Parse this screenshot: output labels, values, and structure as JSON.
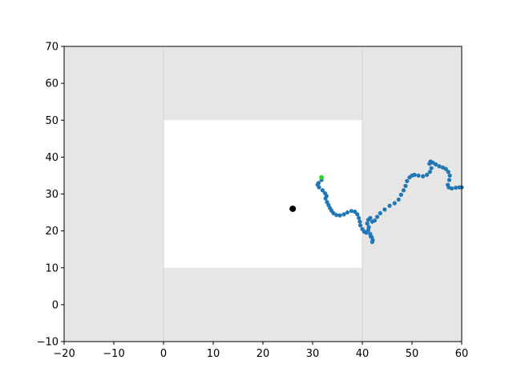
{
  "chart_data": {
    "type": "scatter",
    "title": "",
    "xlabel": "",
    "ylabel": "",
    "xlim": [
      -20,
      60
    ],
    "ylim": [
      -10,
      70
    ],
    "x_ticks": [
      -20,
      -10,
      0,
      10,
      20,
      30,
      40,
      50,
      60
    ],
    "y_ticks": [
      -10,
      0,
      10,
      20,
      30,
      40,
      50,
      60,
      70
    ],
    "x_tick_labels": [
      "−20",
      "−10",
      "0",
      "10",
      "20",
      "30",
      "40",
      "50",
      "60"
    ],
    "y_tick_labels": [
      "−10",
      "0",
      "10",
      "20",
      "30",
      "40",
      "50",
      "60",
      "70"
    ],
    "grid": false,
    "background_color": "#e6e6e6",
    "region": {
      "x": [
        0,
        40
      ],
      "y": [
        10,
        50
      ],
      "color": "#ffffff"
    },
    "guide_lines_x": [
      0,
      40
    ],
    "series": [
      {
        "color": "#1f77b4",
        "x": [
          31.8,
          31.2,
          31.0,
          31.3,
          32.0,
          32.5,
          32.8,
          32.6,
          32.9,
          33.2,
          33.5,
          33.8,
          34.2,
          34.8,
          35.5,
          36.3,
          37.0,
          37.8,
          38.5,
          39.0,
          39.3,
          39.5,
          39.6,
          40.0,
          40.4,
          40.8,
          41.2,
          41.6,
          41.9,
          42.1,
          42.0,
          41.7,
          41.3,
          41.0,
          41.2,
          41.6,
          42.0,
          42.5,
          43.0,
          43.6,
          44.5,
          45.5,
          46.5,
          47.3,
          47.8,
          48.3,
          48.7,
          49.0,
          49.5,
          50.0,
          50.5,
          51.3,
          52.2,
          53.0,
          53.6,
          53.9,
          53.5,
          53.7,
          54.2,
          54.8,
          55.5,
          56.2,
          56.8,
          57.3,
          57.6,
          57.5,
          57.2,
          57.4,
          58.0,
          58.8,
          59.5,
          60.0
        ],
        "y": [
          33.8,
          33.0,
          32.5,
          31.8,
          31.0,
          30.2,
          29.5,
          28.8,
          27.8,
          27.0,
          26.2,
          25.5,
          24.8,
          24.3,
          24.2,
          24.5,
          25.0,
          25.4,
          25.2,
          24.5,
          23.5,
          22.5,
          21.5,
          20.5,
          19.8,
          19.5,
          20.2,
          19.2,
          18.3,
          17.5,
          17.0,
          18.5,
          21.0,
          22.0,
          23.0,
          23.5,
          22.5,
          22.8,
          23.8,
          24.8,
          25.8,
          26.8,
          27.5,
          28.5,
          29.8,
          31.0,
          32.2,
          33.5,
          34.5,
          35.0,
          35.2,
          35.0,
          34.8,
          35.2,
          36.0,
          37.0,
          38.2,
          38.8,
          38.5,
          38.0,
          37.5,
          37.2,
          36.8,
          36.0,
          35.0,
          33.8,
          32.5,
          31.8,
          31.5,
          31.7,
          31.8,
          31.8
        ]
      }
    ],
    "current_point": {
      "x": 31.8,
      "y": 34.5,
      "color": "#22dd22"
    },
    "target_point": {
      "x": 26.0,
      "y": 26.0,
      "color": "#000000"
    }
  }
}
